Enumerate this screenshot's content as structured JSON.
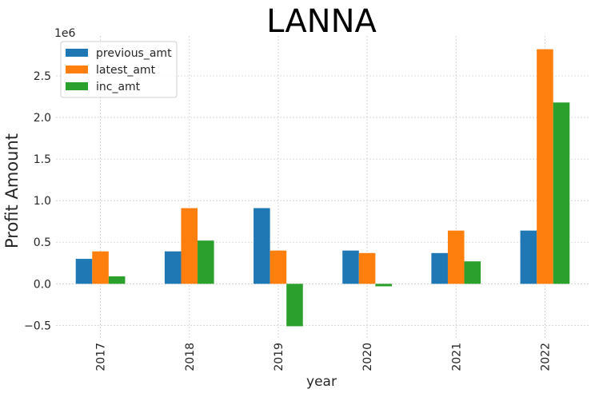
{
  "chart_data": {
    "type": "bar",
    "title": "LANNA",
    "xlabel": "year",
    "ylabel": "Profit Amount",
    "y_offset_label": "1e6",
    "categories": [
      "2017",
      "2018",
      "2019",
      "2020",
      "2021",
      "2022"
    ],
    "series": [
      {
        "name": "previous_amt",
        "color": "#1f77b4",
        "values": [
          300000,
          390000,
          910000,
          400000,
          370000,
          640000
        ]
      },
      {
        "name": "latest_amt",
        "color": "#ff7f0e",
        "values": [
          390000,
          910000,
          400000,
          370000,
          640000,
          2820000
        ]
      },
      {
        "name": "inc_amt",
        "color": "#2ca02c",
        "values": [
          90000,
          520000,
          -510000,
          -30000,
          270000,
          2180000
        ]
      }
    ],
    "yticks": [
      -0.5,
      0.0,
      0.5,
      1.0,
      1.5,
      2.0,
      2.5
    ],
    "ytick_labels": [
      "−0.5",
      "0.0",
      "0.5",
      "1.0",
      "1.5",
      "2.0",
      "2.5"
    ],
    "ylim": [
      -0.65,
      2.98
    ],
    "tick_scale": 1000000,
    "grid": true,
    "legend_position": "top-left"
  }
}
